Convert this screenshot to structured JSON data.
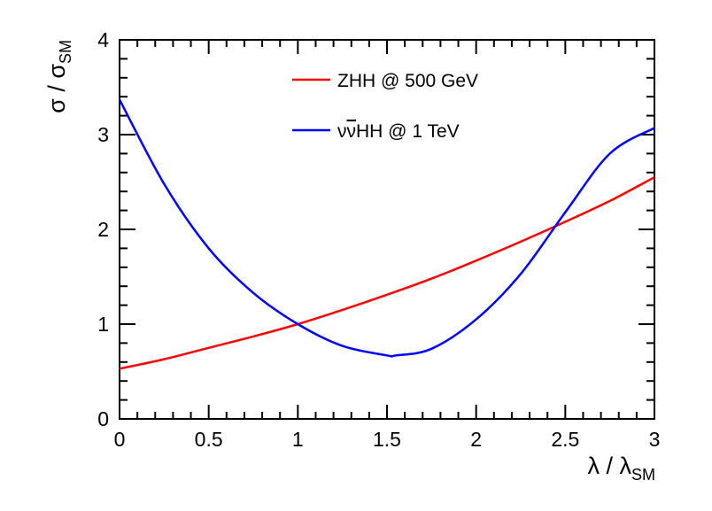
{
  "chart_data": {
    "type": "line",
    "xlabel": "λ / λ",
    "xlabel_sub": "SM",
    "ylabel": "σ / σ",
    "ylabel_sub": "SM",
    "xlim": [
      0,
      3
    ],
    "ylim": [
      0,
      4
    ],
    "x_ticks": [
      0,
      0.5,
      1,
      1.5,
      2,
      2.5,
      3
    ],
    "x_tick_labels": [
      "0",
      "0.5",
      "1",
      "1.5",
      "2",
      "2.5",
      "3"
    ],
    "y_ticks": [
      0,
      1,
      2,
      3,
      4
    ],
    "y_tick_labels": [
      "0",
      "1",
      "2",
      "3",
      "4"
    ],
    "grid": false,
    "legend_position": "top-center",
    "series": [
      {
        "name": "ZHH @ 500 GeV",
        "color": "#ff0000",
        "x": [
          0,
          0.25,
          0.5,
          0.75,
          1.0,
          1.25,
          1.5,
          1.75,
          2.0,
          2.25,
          2.5,
          2.75,
          3.0
        ],
        "y": [
          0.53,
          0.63,
          0.75,
          0.87,
          1.0,
          1.15,
          1.31,
          1.48,
          1.67,
          1.87,
          2.08,
          2.3,
          2.55
        ]
      },
      {
        "name_parts": [
          "ν",
          "ν",
          "HH @ 1 TeV"
        ],
        "color": "#0000ff",
        "x": [
          0,
          0.25,
          0.5,
          0.75,
          1.0,
          1.25,
          1.5,
          1.55,
          1.75,
          2.0,
          2.25,
          2.5,
          2.75,
          3.0
        ],
        "y": [
          3.37,
          2.48,
          1.8,
          1.33,
          1.0,
          0.77,
          0.67,
          0.67,
          0.74,
          1.05,
          1.53,
          2.18,
          2.8,
          3.07
        ]
      }
    ]
  }
}
